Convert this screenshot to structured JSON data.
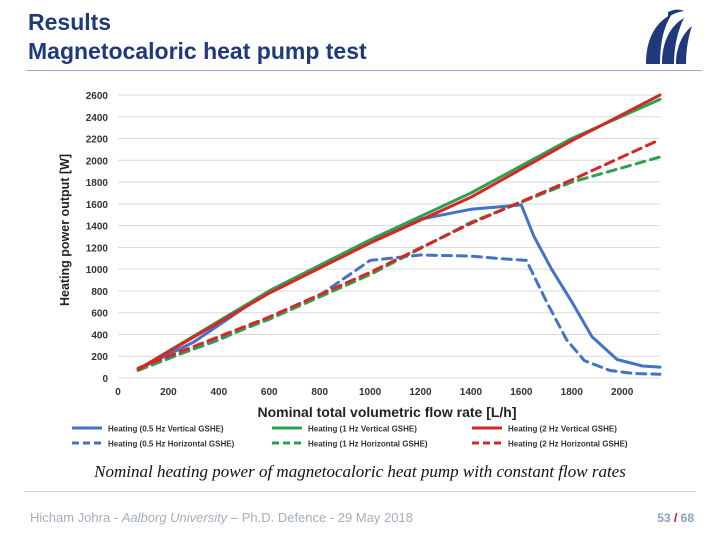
{
  "header": {
    "title_line1": "Results",
    "title_line2": "Magnetocaloric heat pump test",
    "logo_icon": "aau-logo-icon"
  },
  "caption": "Nominal heating power of magnetocaloric heat pump with constant flow rates",
  "footer": {
    "author": "Hicham Johra - ",
    "institution": "Aalborg University",
    "event": " – Ph.D. Defence - 29 May 2018",
    "page": "53",
    "page_sep": " / ",
    "page_total": "68"
  },
  "colors": {
    "title": "#1f3a7a",
    "blue": "#4472c4",
    "green": "#2ca24f",
    "red": "#d62728"
  },
  "chart_data": {
    "type": "line",
    "xlabel": "Nominal total volumetric flow rate [L/h]",
    "ylabel": "Heating power output [W]",
    "xlim": [
      0,
      2150
    ],
    "ylim": [
      0,
      2600
    ],
    "xticks": [
      0,
      200,
      400,
      600,
      800,
      1000,
      1200,
      1400,
      1600,
      1800,
      2000
    ],
    "yticks": [
      0,
      200,
      400,
      600,
      800,
      1000,
      1200,
      1400,
      1600,
      1800,
      2000,
      2200,
      2400,
      2600
    ],
    "grid": "horizontal",
    "legend_position": "bottom",
    "series": [
      {
        "name": "Heating (0.5 Hz Vertical GSHE)",
        "color": "#4472c4",
        "dash": "solid",
        "points": [
          [
            80,
            80
          ],
          [
            300,
            330
          ],
          [
            600,
            800
          ],
          [
            900,
            1150
          ],
          [
            1200,
            1460
          ],
          [
            1400,
            1550
          ],
          [
            1600,
            1590
          ],
          [
            1650,
            1300
          ],
          [
            1720,
            1000
          ],
          [
            1800,
            700
          ],
          [
            1880,
            380
          ],
          [
            1980,
            170
          ],
          [
            2080,
            110
          ],
          [
            2150,
            100
          ]
        ]
      },
      {
        "name": "Heating (0.5 Hz Horizontal GSHE)",
        "color": "#4472c4",
        "dash": "dashed",
        "points": [
          [
            80,
            80
          ],
          [
            400,
            350
          ],
          [
            800,
            760
          ],
          [
            1000,
            1080
          ],
          [
            1200,
            1130
          ],
          [
            1400,
            1120
          ],
          [
            1500,
            1100
          ],
          [
            1620,
            1080
          ],
          [
            1700,
            700
          ],
          [
            1780,
            350
          ],
          [
            1850,
            160
          ],
          [
            1950,
            70
          ],
          [
            2050,
            40
          ],
          [
            2150,
            35
          ]
        ]
      },
      {
        "name": "Heating (1 Hz Vertical GSHE)",
        "color": "#2ca24f",
        "dash": "solid",
        "points": [
          [
            80,
            80
          ],
          [
            600,
            800
          ],
          [
            1000,
            1270
          ],
          [
            1400,
            1700
          ],
          [
            1800,
            2200
          ],
          [
            2150,
            2560
          ]
        ]
      },
      {
        "name": "Heating (1 Hz Horizontal GSHE)",
        "color": "#2ca24f",
        "dash": "dashed",
        "points": [
          [
            80,
            70
          ],
          [
            600,
            540
          ],
          [
            1000,
            950
          ],
          [
            1400,
            1430
          ],
          [
            1800,
            1800
          ],
          [
            2150,
            2030
          ]
        ]
      },
      {
        "name": "Heating (2 Hz Vertical GSHE)",
        "color": "#d62728",
        "dash": "solid",
        "points": [
          [
            80,
            80
          ],
          [
            600,
            780
          ],
          [
            1000,
            1240
          ],
          [
            1400,
            1660
          ],
          [
            1800,
            2180
          ],
          [
            2150,
            2600
          ]
        ]
      },
      {
        "name": "Heating (2 Hz Horizontal GSHE)",
        "color": "#d62728",
        "dash": "dashed",
        "points": [
          [
            80,
            90
          ],
          [
            600,
            560
          ],
          [
            1000,
            970
          ],
          [
            1400,
            1420
          ],
          [
            1800,
            1820
          ],
          [
            2150,
            2190
          ]
        ]
      }
    ]
  }
}
